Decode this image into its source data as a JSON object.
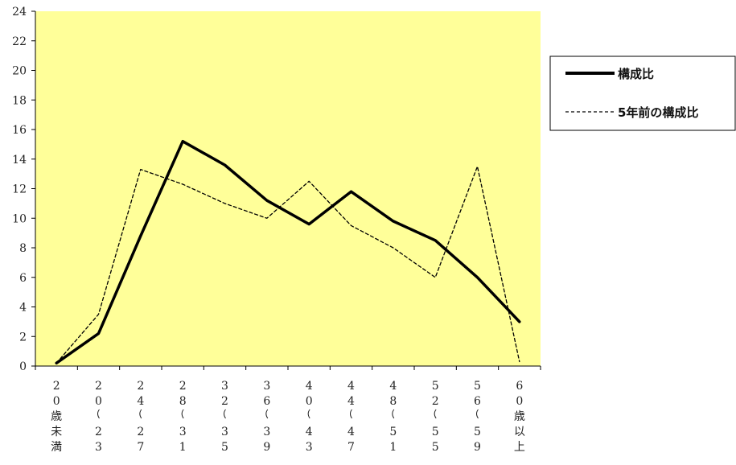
{
  "chart_data": {
    "type": "line",
    "title": "",
    "xlabel": "",
    "ylabel": "",
    "ylim": [
      0,
      24
    ],
    "yticks": [
      0,
      2,
      4,
      6,
      8,
      10,
      12,
      14,
      16,
      18,
      20,
      22,
      24
    ],
    "categories": [
      "20歳未満",
      "20〜23",
      "24〜27",
      "28〜31",
      "32〜35",
      "36〜39",
      "40〜43",
      "44〜47",
      "48〜51",
      "52〜55",
      "56〜59",
      "60歳以上"
    ],
    "category_label_chars": [
      [
        "2",
        "0",
        "歳",
        "未",
        "満"
      ],
      [
        "2",
        "0",
        "〜",
        "2",
        "3"
      ],
      [
        "2",
        "4",
        "〜",
        "2",
        "7"
      ],
      [
        "2",
        "8",
        "〜",
        "3",
        "1"
      ],
      [
        "3",
        "2",
        "〜",
        "3",
        "5"
      ],
      [
        "3",
        "6",
        "〜",
        "3",
        "9"
      ],
      [
        "4",
        "0",
        "〜",
        "4",
        "3"
      ],
      [
        "4",
        "4",
        "〜",
        "4",
        "7"
      ],
      [
        "4",
        "8",
        "〜",
        "5",
        "1"
      ],
      [
        "5",
        "2",
        "〜",
        "5",
        "5"
      ],
      [
        "5",
        "6",
        "〜",
        "5",
        "9"
      ],
      [
        "6",
        "0",
        "歳",
        "以",
        "上"
      ]
    ],
    "series": [
      {
        "name": "構成比",
        "style": "solid-thick",
        "color": "#000000",
        "values": [
          0.2,
          2.2,
          8.8,
          15.2,
          13.6,
          11.2,
          9.6,
          11.8,
          9.8,
          8.5,
          6.0,
          3.0
        ]
      },
      {
        "name": "5年前の構成比",
        "style": "dashed",
        "color": "#000000",
        "values": [
          0.2,
          3.5,
          13.3,
          12.3,
          11.0,
          10.0,
          12.5,
          9.5,
          8.0,
          6.0,
          13.5,
          0.3
        ]
      }
    ],
    "plot_background": "#FFFF99",
    "grid": false,
    "legend_position": "right"
  }
}
